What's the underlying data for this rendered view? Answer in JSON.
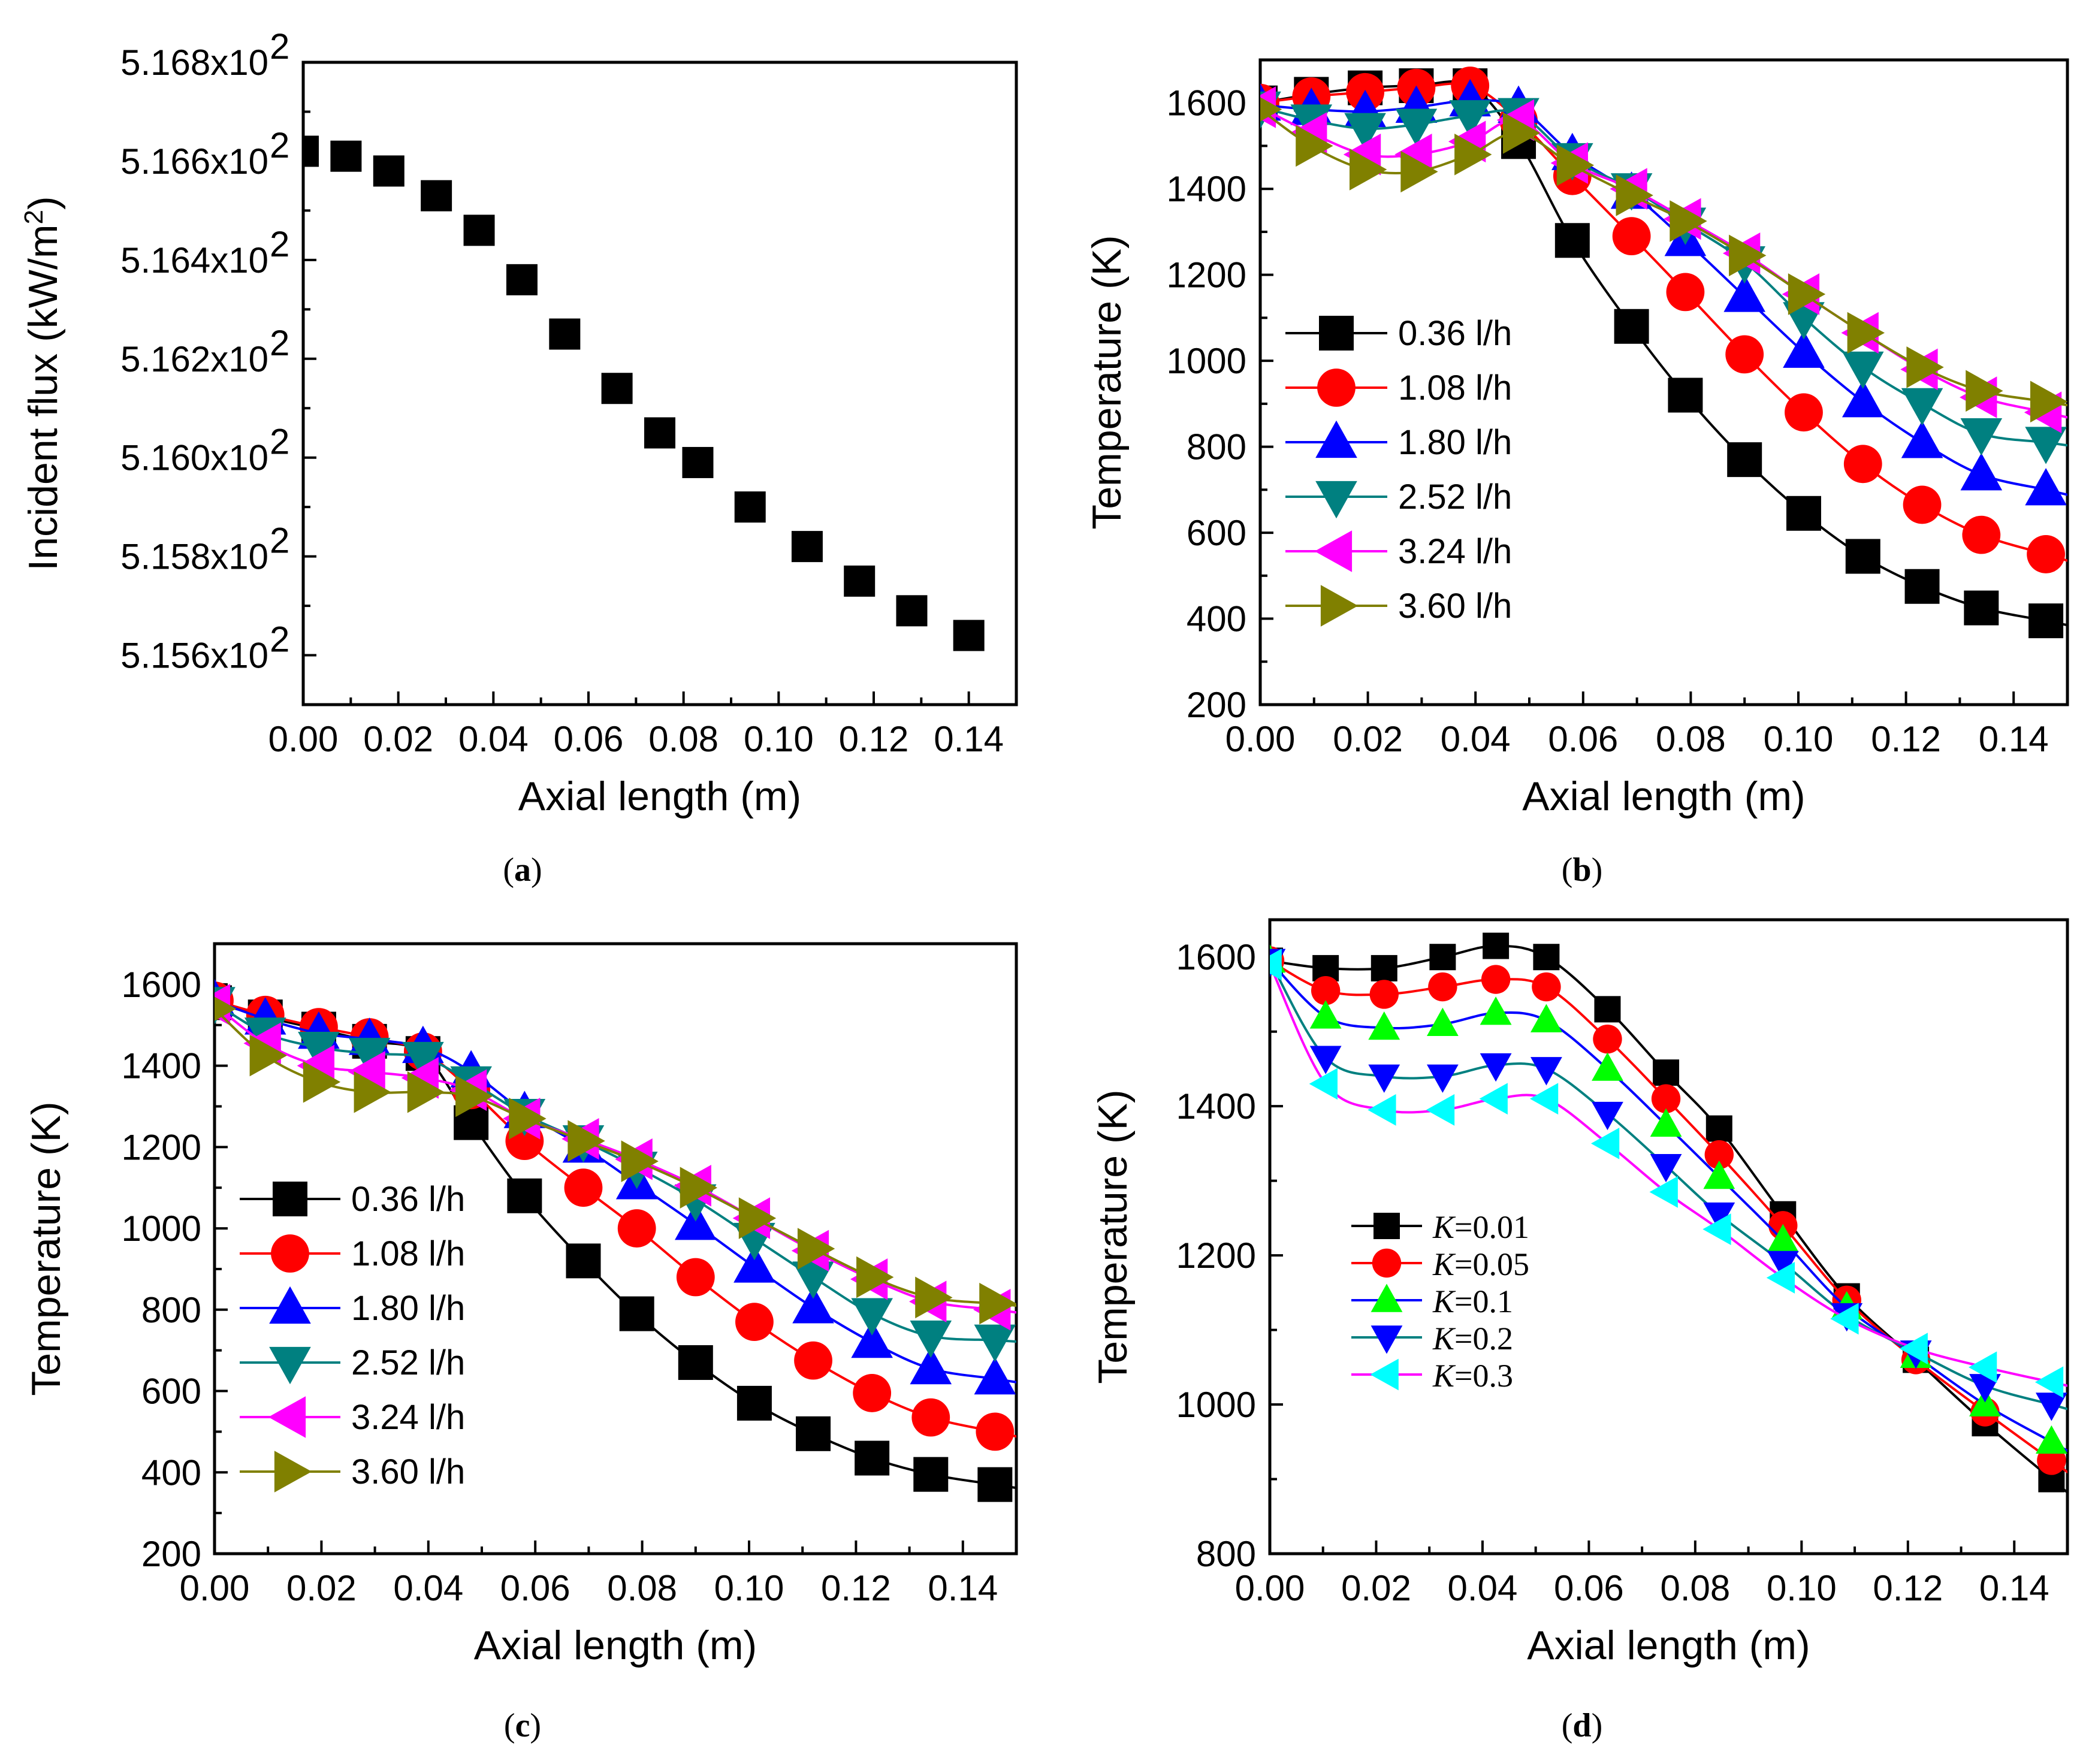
{
  "chart_data": [
    {
      "id": "a",
      "type": "scatter",
      "caption": "a",
      "xlabel": "Axial length (m)",
      "ylabel": "Incident flux (kW/m",
      "ylabel_sup": "2",
      "ylabel_tail": ")",
      "xlim": [
        0,
        0.15
      ],
      "ylim": [
        515.5,
        516.8
      ],
      "xticks": [
        0,
        0.02,
        0.04,
        0.06,
        0.08,
        0.1,
        0.12,
        0.14
      ],
      "xtick_labels": [
        "0.00",
        "0.02",
        "0.04",
        "0.06",
        "0.08",
        "0.10",
        "0.12",
        "0.14"
      ],
      "yticks": [
        515.6,
        515.8,
        516.0,
        516.2,
        516.4,
        516.6,
        516.8
      ],
      "ytick_labels": [
        "5.156x10",
        "5.158x10",
        "5.160x10",
        "5.162x10",
        "5.164x10",
        "5.166x10",
        "5.168x10"
      ],
      "ytick_exp": "2",
      "series": [
        {
          "name": "Incident flux",
          "color": "#000000",
          "marker": "square",
          "line": false,
          "x": [
            0.0,
            0.009,
            0.018,
            0.028,
            0.037,
            0.046,
            0.055,
            0.066,
            0.075,
            0.083,
            0.094,
            0.106,
            0.117,
            0.128,
            0.14
          ],
          "y": [
            516.62,
            516.61,
            516.58,
            516.53,
            516.46,
            516.36,
            516.25,
            516.14,
            516.05,
            515.99,
            515.9,
            515.82,
            515.75,
            515.69,
            515.64
          ]
        }
      ]
    },
    {
      "id": "b",
      "type": "line",
      "caption": "b",
      "xlabel": "Axial length (m)",
      "ylabel": "Temperature (K)",
      "xlim": [
        0,
        0.15
      ],
      "ylim": [
        200,
        1700
      ],
      "xticks": [
        0,
        0.02,
        0.04,
        0.06,
        0.08,
        0.1,
        0.12,
        0.14
      ],
      "xtick_labels": [
        "0.00",
        "0.02",
        "0.04",
        "0.06",
        "0.08",
        "0.10",
        "0.12",
        "0.14"
      ],
      "yticks": [
        200,
        400,
        600,
        800,
        1000,
        1200,
        1400,
        1600
      ],
      "ytick_labels": [
        "200",
        "400",
        "600",
        "800",
        "1000",
        "1200",
        "1400",
        "1600"
      ],
      "x": [
        0.0,
        0.0095,
        0.0195,
        0.029,
        0.039,
        0.048,
        0.058,
        0.069,
        0.079,
        0.09,
        0.101,
        0.112,
        0.123,
        0.134,
        0.146
      ],
      "series": [
        {
          "name": "0.36 l/h",
          "color": "#000000",
          "marker": "square",
          "y": [
            1600,
            1620,
            1635,
            1640,
            1640,
            1510,
            1280,
            1080,
            920,
            770,
            645,
            545,
            475,
            425,
            395
          ]
        },
        {
          "name": "1.08 l/h",
          "color": "#ff0000",
          "marker": "circle",
          "y": [
            1600,
            1615,
            1625,
            1635,
            1640,
            1560,
            1430,
            1290,
            1160,
            1015,
            880,
            760,
            665,
            595,
            550
          ]
        },
        {
          "name": "1.80 l/h",
          "color": "#0000ff",
          "marker": "triangle-up",
          "y": [
            1595,
            1585,
            1580,
            1590,
            1605,
            1590,
            1480,
            1390,
            1280,
            1150,
            1020,
            905,
            810,
            735,
            700
          ]
        },
        {
          "name": "2.52 l/h",
          "color": "#008080",
          "marker": "triangle-down",
          "y": [
            1590,
            1560,
            1540,
            1550,
            1570,
            1575,
            1470,
            1400,
            1320,
            1230,
            1100,
            985,
            900,
            830,
            810
          ]
        },
        {
          "name": "3.24 l/h",
          "color": "#ff00ff",
          "marker": "triangle-left",
          "y": [
            1590,
            1530,
            1480,
            1480,
            1510,
            1560,
            1460,
            1400,
            1330,
            1250,
            1155,
            1065,
            980,
            915,
            880
          ]
        },
        {
          "name": "3.60 l/h",
          "color": "#808000",
          "marker": "triangle-right",
          "y": [
            1585,
            1500,
            1445,
            1440,
            1480,
            1530,
            1455,
            1385,
            1325,
            1245,
            1155,
            1065,
            985,
            930,
            905
          ]
        }
      ],
      "legend_position": "left"
    },
    {
      "id": "c",
      "type": "line",
      "caption": "c",
      "xlabel": "Axial length (m)",
      "ylabel": "Temperature (K)",
      "xlim": [
        0,
        0.15
      ],
      "ylim": [
        200,
        1700
      ],
      "xticks": [
        0,
        0.02,
        0.04,
        0.06,
        0.08,
        0.1,
        0.12,
        0.14
      ],
      "xtick_labels": [
        "0.00",
        "0.02",
        "0.04",
        "0.06",
        "0.08",
        "0.10",
        "0.12",
        "0.14"
      ],
      "yticks": [
        200,
        400,
        600,
        800,
        1000,
        1200,
        1400,
        1600
      ],
      "ytick_labels": [
        "200",
        "400",
        "600",
        "800",
        "1000",
        "1200",
        "1400",
        "1600"
      ],
      "x": [
        0.0,
        0.0095,
        0.0195,
        0.029,
        0.039,
        0.048,
        0.058,
        0.069,
        0.079,
        0.09,
        0.101,
        0.112,
        0.123,
        0.134,
        0.146
      ],
      "series": [
        {
          "name": "0.36 l/h",
          "color": "#000000",
          "marker": "square",
          "y": [
            1555,
            1520,
            1490,
            1460,
            1430,
            1260,
            1080,
            920,
            790,
            670,
            570,
            495,
            435,
            395,
            370
          ]
        },
        {
          "name": "1.08 l/h",
          "color": "#ff0000",
          "marker": "circle",
          "y": [
            1560,
            1525,
            1495,
            1470,
            1435,
            1340,
            1215,
            1100,
            1000,
            880,
            770,
            675,
            595,
            535,
            500
          ]
        },
        {
          "name": "1.80 l/h",
          "color": "#0000ff",
          "marker": "triangle-up",
          "y": [
            1560,
            1515,
            1480,
            1465,
            1445,
            1385,
            1285,
            1200,
            1110,
            1010,
            905,
            805,
            720,
            655,
            630
          ]
        },
        {
          "name": "2.52 l/h",
          "color": "#008080",
          "marker": "triangle-down",
          "y": [
            1555,
            1480,
            1445,
            1430,
            1420,
            1360,
            1280,
            1215,
            1150,
            1070,
            975,
            880,
            790,
            735,
            725
          ]
        },
        {
          "name": "3.24 l/h",
          "color": "#ff00ff",
          "marker": "triangle-left",
          "y": [
            1550,
            1455,
            1400,
            1385,
            1370,
            1340,
            1270,
            1220,
            1170,
            1105,
            1025,
            945,
            875,
            820,
            800
          ]
        },
        {
          "name": "3.60 l/h",
          "color": "#808000",
          "marker": "triangle-right",
          "y": [
            1540,
            1425,
            1360,
            1335,
            1335,
            1325,
            1270,
            1215,
            1165,
            1100,
            1025,
            950,
            880,
            830,
            815
          ]
        }
      ],
      "legend_position": "left"
    },
    {
      "id": "d",
      "type": "line",
      "caption": "d",
      "xlabel": "Axial length (m)",
      "ylabel": "Temperature (K)",
      "xlim": [
        0,
        0.15
      ],
      "ylim": [
        800,
        1650
      ],
      "xticks": [
        0,
        0.02,
        0.04,
        0.06,
        0.08,
        0.1,
        0.12,
        0.14
      ],
      "xtick_labels": [
        "0.00",
        "0.02",
        "0.04",
        "0.06",
        "0.08",
        "0.10",
        "0.12",
        "0.14"
      ],
      "yticks": [
        800,
        1000,
        1200,
        1400,
        1600
      ],
      "ytick_labels": [
        "800",
        "1000",
        "1200",
        "1400",
        "1600"
      ],
      "x": [
        0.0,
        0.0105,
        0.0215,
        0.0325,
        0.0425,
        0.052,
        0.0635,
        0.0745,
        0.0845,
        0.0965,
        0.1085,
        0.1215,
        0.1345,
        0.147
      ],
      "series": [
        {
          "label_prefix": "K",
          "label_value": "=0.01",
          "color": "#000000",
          "marker": "square",
          "y": [
            1595,
            1585,
            1585,
            1600,
            1615,
            1600,
            1530,
            1445,
            1370,
            1255,
            1145,
            1060,
            975,
            900
          ]
        },
        {
          "label_prefix": "K",
          "label_value": "=0.05",
          "color": "#ff0000",
          "marker": "circle",
          "y": [
            1595,
            1555,
            1550,
            1560,
            1570,
            1560,
            1490,
            1410,
            1335,
            1240,
            1140,
            1060,
            990,
            925
          ]
        },
        {
          "label_prefix": "K",
          "label_value": "=0.1",
          "color": "#00ff00",
          "marker": "triangle-up",
          "y": [
            1595,
            1520,
            1505,
            1510,
            1525,
            1515,
            1450,
            1375,
            1305,
            1220,
            1130,
            1065,
            1000,
            950
          ]
        },
        {
          "label_prefix": "K",
          "label_value": "=0.2",
          "color": "#0000ff",
          "marker": "triangle-down",
          "y": [
            1595,
            1465,
            1440,
            1440,
            1455,
            1450,
            1390,
            1320,
            1255,
            1190,
            1120,
            1070,
            1025,
            1000
          ]
        },
        {
          "label_prefix": "K",
          "label_value": "=0.3",
          "color": "#00ffff",
          "marker": "triangle-left",
          "y": [
            1590,
            1430,
            1395,
            1395,
            1410,
            1410,
            1350,
            1285,
            1235,
            1170,
            1115,
            1075,
            1050,
            1030
          ]
        }
      ],
      "line_colors": [
        "#000000",
        "#ff0000",
        "#0000ff",
        "#008080",
        "#ff00ff"
      ],
      "legend_position": "center-left"
    }
  ]
}
